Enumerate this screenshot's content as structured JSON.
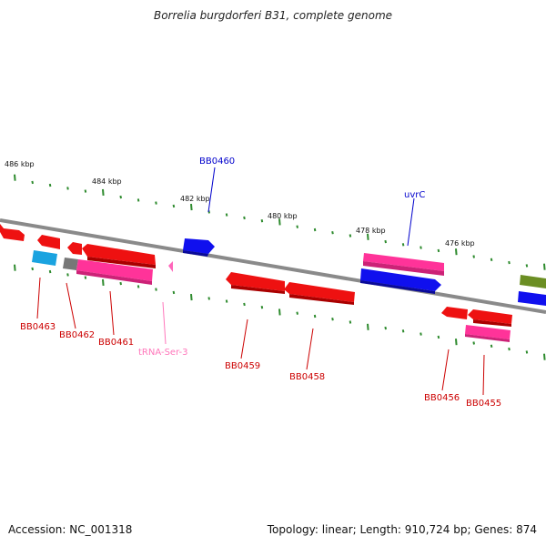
{
  "title": "Borrelia burgdorferi B31, complete genome",
  "footer": {
    "accession": "Accession: NC_001318",
    "summary": "Topology: linear; Length: 910,724 bp; Genes: 874"
  },
  "colors": {
    "backbone": "#8a8a8a",
    "tick": "#2e8b2e",
    "red": "#ee1111",
    "magenta": "#ff3399",
    "blue": "#1010ee",
    "cyan": "#1aa3e0",
    "gray": "#777777",
    "olive": "#6b8e23",
    "pink": "#ff66bb",
    "label_red": "#cc0000",
    "label_blue": "#0000cc",
    "label_pink": "#ff77bb"
  },
  "kbp_labels": [
    "486 kbp",
    "484 kbp",
    "482 kbp",
    "480 kbp",
    "478 kbp",
    "476 kbp"
  ],
  "gene_labels": {
    "bb0460": "BB0460",
    "uvrc": "uvrC",
    "bb0463": "BB0463",
    "bb0462": "BB0462",
    "bb0461": "BB0461",
    "trna": "tRNA-Ser-3",
    "bb0459": "BB0459",
    "bb0458": "BB0458",
    "bb0456": "BB0456",
    "bb0455": "BB0455"
  }
}
